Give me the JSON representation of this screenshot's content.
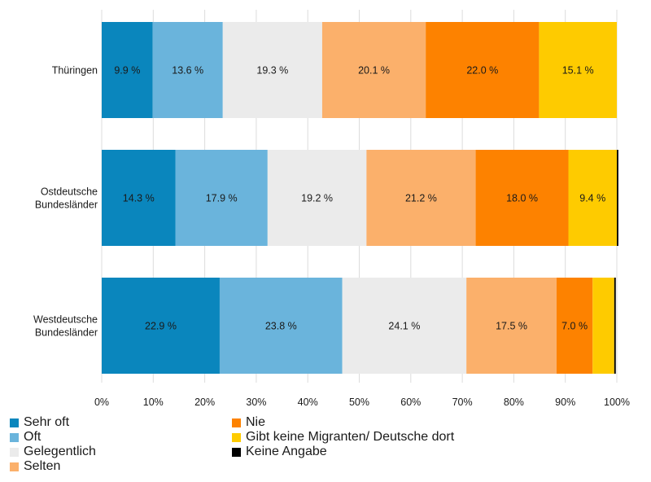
{
  "chart_data": {
    "type": "bar",
    "orientation": "horizontal-stacked-100",
    "categories": [
      "Thüringen",
      "Ostdeutsche Bundesländer",
      "Westdeutsche Bundesländer"
    ],
    "category_lines": [
      [
        "Thüringen"
      ],
      [
        "Ostdeutsche",
        "Bundesländer"
      ],
      [
        "Westdeutsche",
        "Bundesländer"
      ]
    ],
    "series": [
      {
        "name": "Sehr oft",
        "color": "#0a86bd",
        "values": [
          9.9,
          14.3,
          22.9
        ],
        "labels": [
          "9.9 %",
          "14.3 %",
          "22.9 %"
        ]
      },
      {
        "name": "Oft",
        "color": "#6ab4dc",
        "values": [
          13.6,
          17.9,
          23.8
        ],
        "labels": [
          "13.6 %",
          "17.9 %",
          "23.8 %"
        ]
      },
      {
        "name": "Gelegentlich",
        "color": "#ebebeb",
        "values": [
          19.3,
          19.2,
          24.1
        ],
        "labels": [
          "19.3 %",
          "19.2 %",
          "24.1 %"
        ]
      },
      {
        "name": "Selten",
        "color": "#fbb06b",
        "values": [
          20.1,
          21.2,
          17.5
        ],
        "labels": [
          "20.1 %",
          "21.2 %",
          "17.5 %"
        ]
      },
      {
        "name": "Nie",
        "color": "#fd8200",
        "values": [
          22.0,
          18.0,
          7.0
        ],
        "labels": [
          "22.0 %",
          "18.0 %",
          "7.0 %"
        ]
      },
      {
        "name": "Gibt keine Migranten/ Deutsche dort",
        "color": "#fecb00",
        "values": [
          15.1,
          9.4,
          4.2
        ],
        "labels": [
          "15.1 %",
          "9.4 %",
          ""
        ]
      },
      {
        "name": "Keine Angabe",
        "color": "#000000",
        "values": [
          0.0,
          0.3,
          0.3
        ],
        "labels": [
          "",
          "",
          ""
        ]
      }
    ],
    "xlim": [
      0,
      100
    ],
    "xticks": [
      "0%",
      "10%",
      "20%",
      "30%",
      "40%",
      "50%",
      "60%",
      "70%",
      "80%",
      "90%",
      "100%"
    ],
    "grid": true,
    "legend_position": "bottom"
  }
}
